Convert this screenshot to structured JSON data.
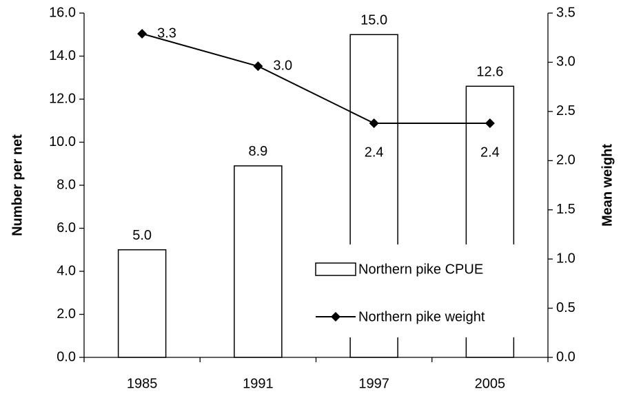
{
  "chart_data": {
    "type": "bar-line",
    "categories": [
      "1985",
      "1991",
      "1997",
      "2005"
    ],
    "series": [
      {
        "name": "Northern pike CPUE",
        "type": "bar",
        "color": "#ffffff",
        "values": [
          5.0,
          8.9,
          15.0,
          12.6
        ],
        "value_labels": [
          "5.0",
          "8.9",
          "15.0",
          "12.6"
        ]
      },
      {
        "name": "Northern pike weight",
        "type": "line",
        "axis": "y2",
        "color": "#000000",
        "values": [
          3.29,
          2.96,
          2.38,
          2.38
        ],
        "value_labels": [
          "3.3",
          "3.0",
          "2.4",
          "2.4"
        ]
      }
    ],
    "y_label": "Number per net",
    "y2_label": "Mean weight",
    "ylim": [
      0,
      16
    ],
    "yticks": [
      {
        "value": 0,
        "label": "0.0"
      },
      {
        "value": 2,
        "label": "2.0"
      },
      {
        "value": 4,
        "label": "4.0"
      },
      {
        "value": 6,
        "label": "6.0"
      },
      {
        "value": 8,
        "label": "8.0"
      },
      {
        "value": 10,
        "label": "10.0"
      },
      {
        "value": 12,
        "label": "12.0"
      },
      {
        "value": 14,
        "label": "14.0"
      },
      {
        "value": 16,
        "label": "16.0"
      }
    ],
    "y2lim": [
      0,
      3.5
    ],
    "y2ticks": [
      {
        "value": 0,
        "label": "0.0"
      },
      {
        "value": 0.5,
        "label": "0.5"
      },
      {
        "value": 1,
        "label": "1.0"
      },
      {
        "value": 1.5,
        "label": "1.5"
      },
      {
        "value": 2,
        "label": "2.0"
      },
      {
        "value": 2.5,
        "label": "2.5"
      },
      {
        "value": 3,
        "label": "3.0"
      },
      {
        "value": 3.5,
        "label": "3.5"
      }
    ],
    "legend": "bottom-right"
  }
}
